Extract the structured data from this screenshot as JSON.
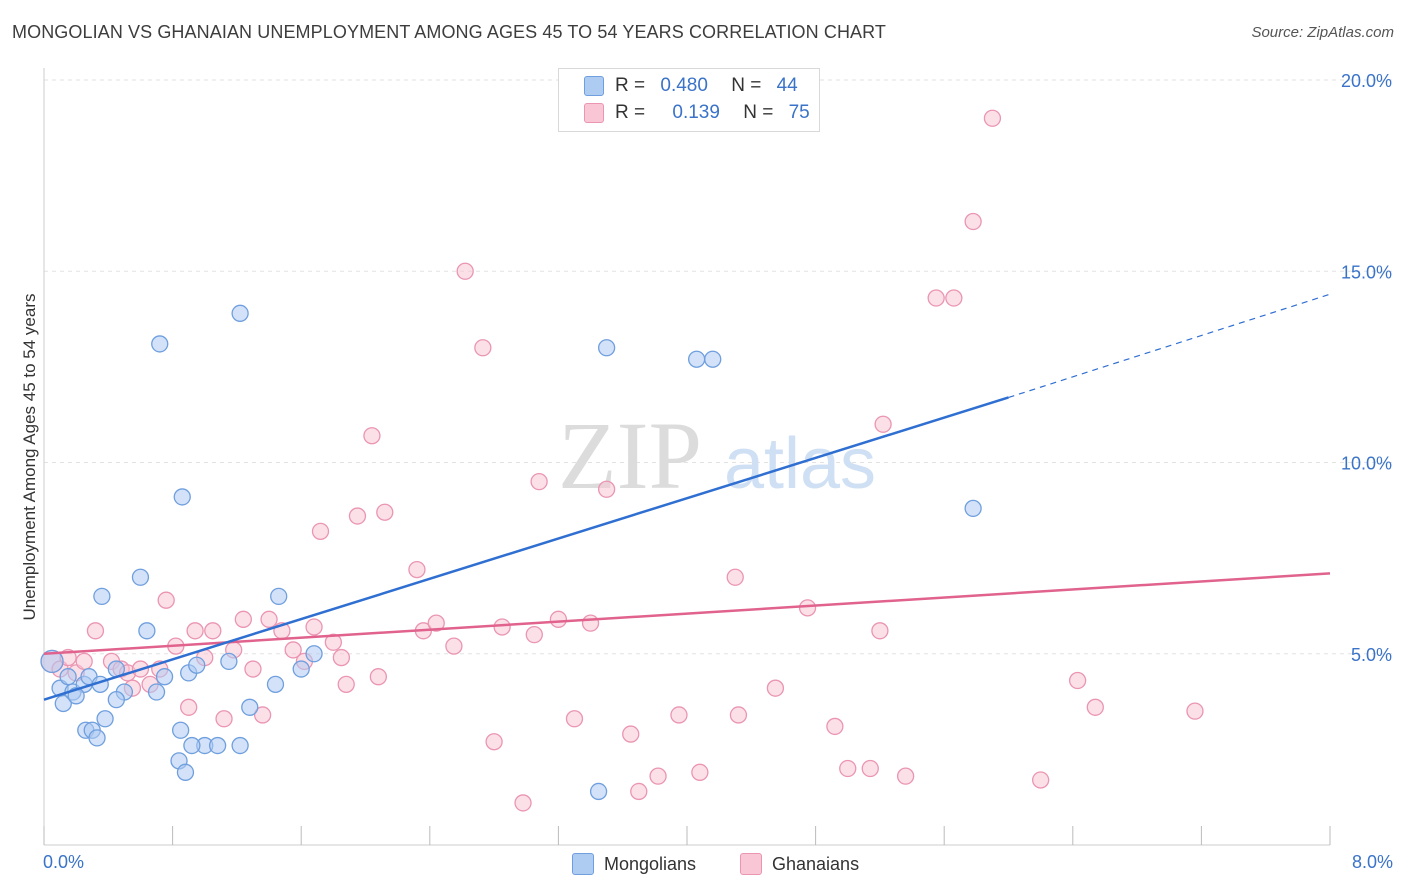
{
  "title": "MONGOLIAN VS GHANAIAN UNEMPLOYMENT AMONG AGES 45 TO 54 YEARS CORRELATION CHART",
  "source": "Source: ZipAtlas.com",
  "watermark": {
    "zip": "ZIP",
    "atlas": "atlas"
  },
  "legend_top": {
    "r_label": "R =",
    "n_label": "N =",
    "rows": [
      {
        "r": "0.480",
        "n": "44"
      },
      {
        "r": "0.139",
        "n": "75"
      }
    ]
  },
  "legend_bottom": [
    "Mongolians",
    "Ghanaians"
  ],
  "x_axis": {
    "min_label": "0.0%",
    "max_label": "8.0%"
  },
  "colors": {
    "mongolians_fill": "#aecbf2",
    "mongolians_stroke": "#6f9fde",
    "mongolians_line": "#2f6fd1",
    "ghanaians_fill": "#f9c6d6",
    "ghanaians_stroke": "#ea95b2",
    "ghanaians_line": "#e0628d",
    "axis_text": "#3a73c8",
    "grid": "#e2e2e2"
  },
  "chart_data": {
    "type": "scatter",
    "title": "MONGOLIAN VS GHANAIAN UNEMPLOYMENT AMONG AGES 45 TO 54 YEARS CORRELATION CHART",
    "xlabel": "",
    "ylabel": "Unemployment Among Ages 45 to 54 years",
    "xlim": [
      0,
      8
    ],
    "ylim": [
      0,
      20.5
    ],
    "y_ticks": [
      5,
      10,
      15,
      20
    ],
    "y_tick_labels": [
      "5.0%",
      "10.0%",
      "15.0%",
      "20.0%"
    ],
    "x_ticks": [
      0,
      0.8,
      1.6,
      2.4,
      3.2,
      4.0,
      4.8,
      5.6,
      6.4,
      7.2,
      8.0
    ],
    "grid": true,
    "legend_position": "top-center",
    "series": [
      {
        "name": "Mongolians",
        "R": 0.48,
        "N": 44,
        "trend": {
          "x": [
            0,
            6.0
          ],
          "y": [
            3.8,
            11.7
          ],
          "dashed_extension": {
            "x": [
              6.0,
              8.0
            ],
            "y": [
              11.7,
              14.4
            ]
          }
        },
        "points": [
          [
            0.05,
            4.8
          ],
          [
            0.1,
            4.1
          ],
          [
            0.15,
            4.4
          ],
          [
            0.12,
            3.7
          ],
          [
            0.18,
            4.0
          ],
          [
            0.25,
            4.2
          ],
          [
            0.28,
            4.4
          ],
          [
            0.35,
            4.2
          ],
          [
            0.26,
            3.0
          ],
          [
            0.45,
            4.6
          ],
          [
            0.5,
            4.0
          ],
          [
            0.38,
            3.3
          ],
          [
            0.45,
            3.8
          ],
          [
            0.3,
            3.0
          ],
          [
            0.33,
            2.8
          ],
          [
            0.36,
            6.5
          ],
          [
            0.6,
            7.0
          ],
          [
            0.64,
            5.6
          ],
          [
            0.75,
            4.4
          ],
          [
            0.9,
            4.5
          ],
          [
            0.95,
            4.7
          ],
          [
            0.85,
            3.0
          ],
          [
            1.0,
            2.6
          ],
          [
            0.84,
            2.2
          ],
          [
            0.88,
            1.9
          ],
          [
            0.92,
            2.6
          ],
          [
            1.22,
            2.6
          ],
          [
            1.15,
            4.8
          ],
          [
            1.28,
            3.6
          ],
          [
            1.44,
            4.2
          ],
          [
            1.46,
            6.5
          ],
          [
            1.6,
            4.6
          ],
          [
            1.68,
            5.0
          ],
          [
            0.72,
            13.1
          ],
          [
            0.86,
            9.1
          ],
          [
            1.22,
            13.9
          ],
          [
            3.5,
            13.0
          ],
          [
            4.06,
            12.7
          ],
          [
            4.16,
            12.7
          ],
          [
            5.78,
            8.8
          ],
          [
            3.45,
            1.4
          ],
          [
            0.7,
            4.0
          ],
          [
            0.2,
            3.9
          ],
          [
            1.08,
            2.6
          ]
        ]
      },
      {
        "name": "Ghanaians",
        "R": 0.139,
        "N": 75,
        "trend": {
          "x": [
            0,
            8.0
          ],
          "y": [
            5.0,
            7.1
          ]
        },
        "points": [
          [
            0.05,
            4.8
          ],
          [
            0.1,
            4.6
          ],
          [
            0.15,
            4.9
          ],
          [
            0.2,
            4.5
          ],
          [
            0.25,
            4.8
          ],
          [
            0.32,
            5.6
          ],
          [
            0.42,
            4.8
          ],
          [
            0.48,
            4.6
          ],
          [
            0.52,
            4.5
          ],
          [
            0.55,
            4.1
          ],
          [
            0.6,
            4.6
          ],
          [
            0.66,
            4.2
          ],
          [
            0.72,
            4.6
          ],
          [
            0.76,
            6.4
          ],
          [
            0.82,
            5.2
          ],
          [
            0.9,
            3.6
          ],
          [
            0.94,
            5.6
          ],
          [
            1.0,
            4.9
          ],
          [
            1.05,
            5.6
          ],
          [
            1.12,
            3.3
          ],
          [
            1.18,
            5.1
          ],
          [
            1.24,
            5.9
          ],
          [
            1.3,
            4.6
          ],
          [
            1.36,
            3.4
          ],
          [
            1.4,
            5.9
          ],
          [
            1.48,
            5.6
          ],
          [
            1.55,
            5.1
          ],
          [
            1.62,
            4.8
          ],
          [
            1.68,
            5.7
          ],
          [
            1.72,
            8.2
          ],
          [
            1.8,
            5.3
          ],
          [
            1.85,
            4.9
          ],
          [
            1.88,
            4.2
          ],
          [
            1.95,
            8.6
          ],
          [
            2.04,
            10.7
          ],
          [
            2.08,
            4.4
          ],
          [
            2.12,
            8.7
          ],
          [
            2.32,
            7.2
          ],
          [
            2.36,
            5.6
          ],
          [
            2.44,
            5.8
          ],
          [
            2.55,
            5.2
          ],
          [
            2.62,
            15.0
          ],
          [
            2.73,
            13.0
          ],
          [
            2.8,
            2.7
          ],
          [
            2.85,
            5.7
          ],
          [
            2.98,
            1.1
          ],
          [
            3.05,
            5.5
          ],
          [
            3.08,
            9.5
          ],
          [
            3.2,
            5.9
          ],
          [
            3.3,
            3.3
          ],
          [
            3.4,
            5.8
          ],
          [
            3.5,
            9.3
          ],
          [
            3.65,
            2.9
          ],
          [
            3.7,
            1.4
          ],
          [
            3.82,
            1.8
          ],
          [
            3.95,
            3.4
          ],
          [
            4.08,
            1.9
          ],
          [
            4.3,
            7.0
          ],
          [
            4.32,
            3.4
          ],
          [
            4.55,
            4.1
          ],
          [
            4.75,
            6.2
          ],
          [
            4.92,
            3.1
          ],
          [
            5.0,
            2.0
          ],
          [
            5.14,
            2.0
          ],
          [
            5.2,
            5.6
          ],
          [
            5.22,
            11.0
          ],
          [
            5.36,
            1.8
          ],
          [
            5.55,
            14.3
          ],
          [
            5.66,
            14.3
          ],
          [
            5.78,
            16.3
          ],
          [
            5.9,
            19.0
          ],
          [
            6.2,
            1.7
          ],
          [
            6.43,
            4.3
          ],
          [
            6.54,
            3.6
          ],
          [
            7.16,
            3.5
          ]
        ]
      }
    ]
  }
}
